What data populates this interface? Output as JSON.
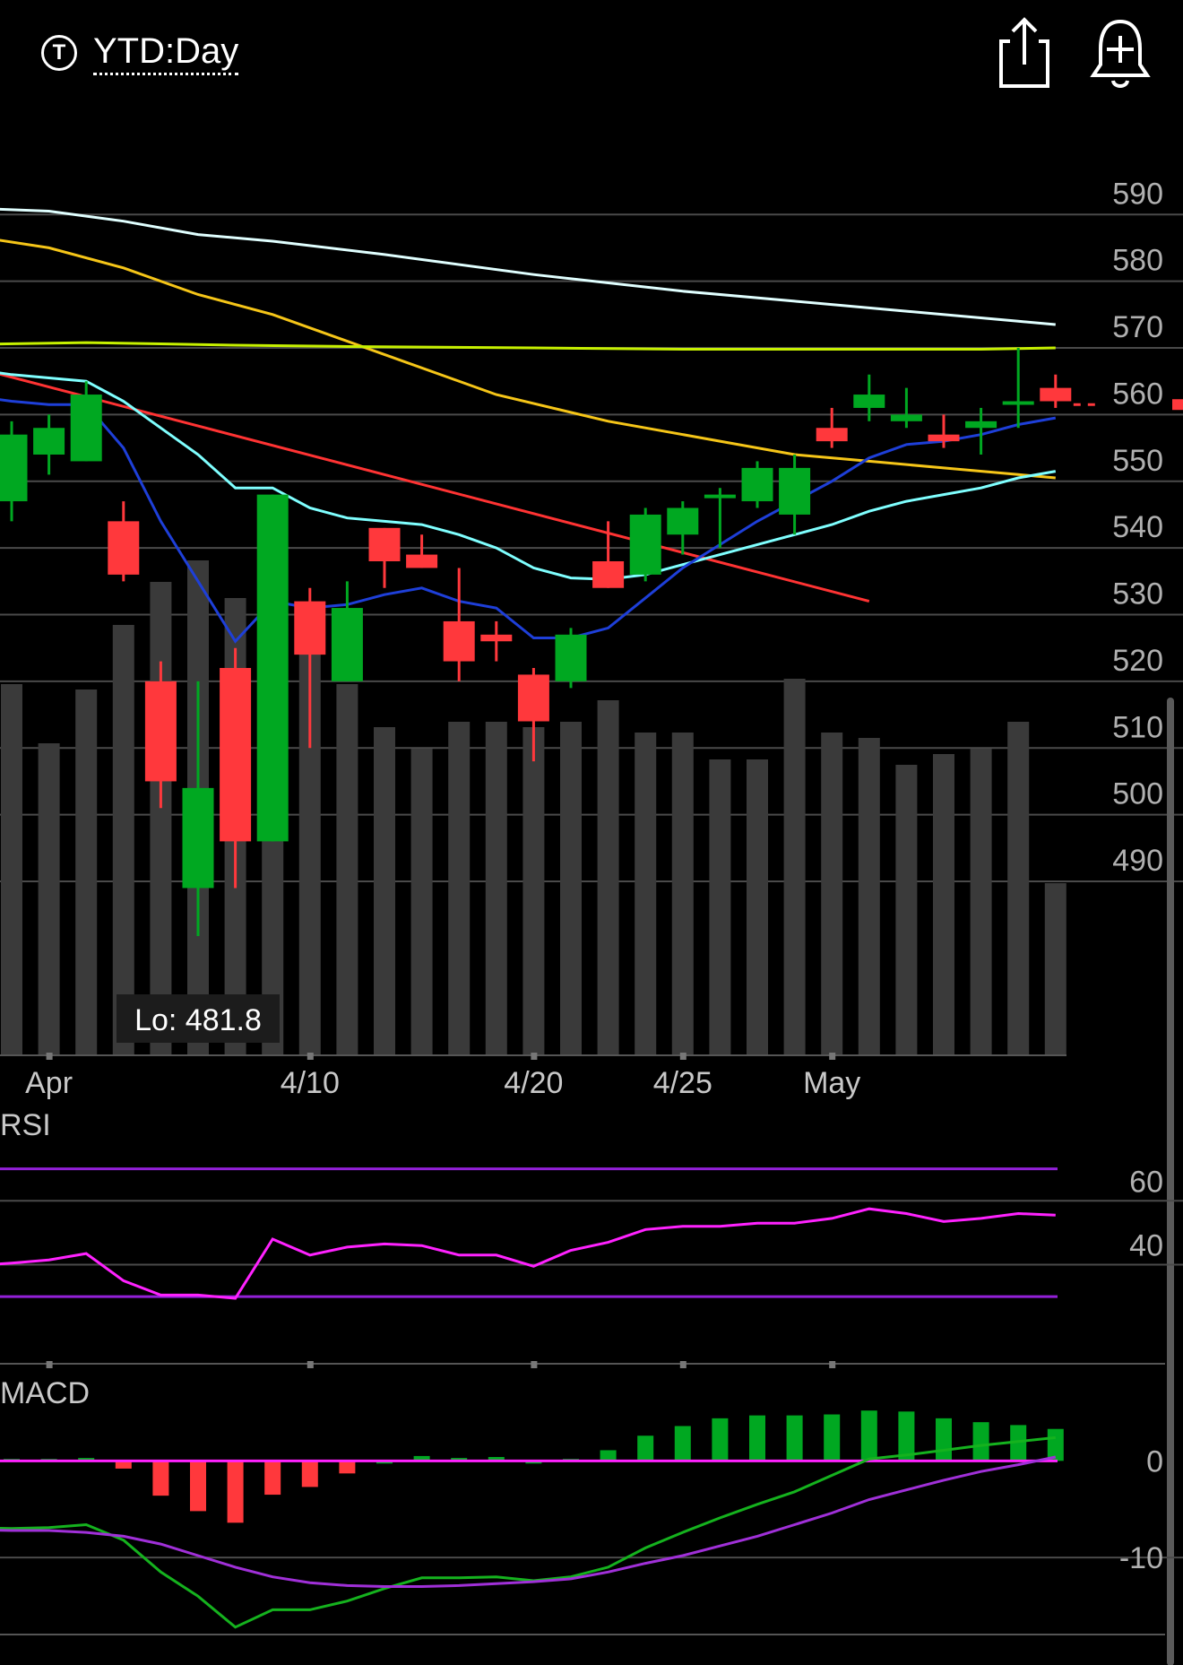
{
  "header": {
    "ticker_symbol": "T",
    "period_label": "YTD:Day",
    "share_icon": "share-icon",
    "alert_icon": "add-alert-bell-icon"
  },
  "chart_data": {
    "type": "candlestick",
    "x_tick_labels": [
      {
        "label": "Apr",
        "index": 1
      },
      {
        "label": "4/10",
        "index": 8
      },
      {
        "label": "4/20",
        "index": 14
      },
      {
        "label": "4/25",
        "index": 18
      },
      {
        "label": "May",
        "index": 22
      }
    ],
    "price_axis": {
      "ticks": [
        590,
        580,
        570,
        560,
        550,
        540,
        530,
        520,
        510,
        500,
        490
      ],
      "range": [
        474,
        602
      ]
    },
    "candles": [
      {
        "o": 547,
        "h": 559,
        "l": 544,
        "c": 557
      },
      {
        "o": 554,
        "h": 560,
        "l": 551,
        "c": 558
      },
      {
        "o": 553,
        "h": 565,
        "l": 553,
        "c": 563
      },
      {
        "o": 544,
        "h": 547,
        "l": 535,
        "c": 536
      },
      {
        "o": 520,
        "h": 523,
        "l": 501,
        "c": 505
      },
      {
        "o": 489,
        "h": 520,
        "l": 481.8,
        "c": 504
      },
      {
        "o": 522,
        "h": 525,
        "l": 489,
        "c": 496
      },
      {
        "o": 496,
        "h": 548,
        "l": 496,
        "c": 548
      },
      {
        "o": 532,
        "h": 534,
        "l": 510,
        "c": 524
      },
      {
        "o": 520,
        "h": 535,
        "l": 520,
        "c": 531
      },
      {
        "o": 543,
        "h": 543,
        "l": 534,
        "c": 538
      },
      {
        "o": 539,
        "h": 542,
        "l": 537,
        "c": 537
      },
      {
        "o": 529,
        "h": 537,
        "l": 520,
        "c": 523
      },
      {
        "o": 527,
        "h": 529,
        "l": 523,
        "c": 526
      },
      {
        "o": 521,
        "h": 522,
        "l": 508,
        "c": 514
      },
      {
        "o": 520,
        "h": 528,
        "l": 519,
        "c": 527
      },
      {
        "o": 538,
        "h": 544,
        "l": 534,
        "c": 534
      },
      {
        "o": 536,
        "h": 546,
        "l": 535,
        "c": 545
      },
      {
        "o": 542,
        "h": 547,
        "l": 539,
        "c": 546
      },
      {
        "o": 548,
        "h": 549,
        "l": 540,
        "c": 548
      },
      {
        "o": 547,
        "h": 553,
        "l": 546,
        "c": 552
      },
      {
        "o": 545,
        "h": 554,
        "l": 542,
        "c": 552
      },
      {
        "o": 558,
        "h": 561,
        "l": 555,
        "c": 556
      },
      {
        "o": 561,
        "h": 566,
        "l": 559,
        "c": 563
      },
      {
        "o": 559,
        "h": 564,
        "l": 558,
        "c": 560
      },
      {
        "o": 557,
        "h": 560,
        "l": 555,
        "c": 556
      },
      {
        "o": 558,
        "h": 561,
        "l": 554,
        "c": 559
      },
      {
        "o": 562,
        "h": 570,
        "l": 558,
        "c": 562
      },
      {
        "o": 564,
        "h": 566,
        "l": 561,
        "c": 562
      }
    ],
    "last_price": 561.5,
    "volume": [
      0.69,
      0.58,
      0.68,
      0.8,
      0.88,
      0.92,
      0.85,
      0.78,
      0.8,
      0.69,
      0.61,
      0.57,
      0.62,
      0.62,
      0.61,
      0.62,
      0.66,
      0.6,
      0.6,
      0.55,
      0.55,
      0.7,
      0.6,
      0.59,
      0.54,
      0.56,
      0.57,
      0.62,
      0.32
    ],
    "low_label": "Lo: 481.8",
    "moving_averages": [
      {
        "color": "#e0ffff",
        "x": [
          -1.3,
          1,
          3,
          5,
          7,
          10,
          14,
          18,
          21,
          24,
          27,
          28
        ],
        "y": [
          591,
          590.5,
          589,
          587,
          586,
          584,
          581,
          578.5,
          577,
          575.5,
          574,
          573.5
        ]
      },
      {
        "color": "#f5c518",
        "x": [
          -1.3,
          1,
          3,
          5,
          7,
          10,
          13,
          16,
          19,
          21,
          23,
          25,
          27,
          28
        ],
        "y": [
          587,
          585,
          582,
          578,
          575,
          569,
          563,
          559,
          556,
          554,
          553,
          552,
          551,
          550.5
        ]
      },
      {
        "color": "#c6f000",
        "x": [
          -1.3,
          2,
          4,
          6,
          9,
          14,
          18,
          22,
          26,
          28
        ],
        "y": [
          570.5,
          570.8,
          570.6,
          570.4,
          570.2,
          570,
          569.8,
          569.8,
          569.8,
          570
        ]
      },
      {
        "color": "#ff3333",
        "x": [
          -1.3,
          23
        ],
        "y": [
          567.5,
          532
        ]
      },
      {
        "color": "#7fffff",
        "x": [
          -1.3,
          0,
          1,
          2,
          3,
          4,
          5,
          6,
          7,
          8,
          9,
          10,
          11,
          12,
          13,
          14,
          15,
          16,
          17,
          18,
          19,
          20,
          21,
          22,
          23,
          24,
          25,
          26,
          27,
          28
        ],
        "y": [
          567,
          566,
          565.5,
          565,
          562,
          558,
          554,
          549,
          549,
          546,
          544.5,
          544,
          543.5,
          542,
          540,
          537,
          535.5,
          535.3,
          536,
          537.5,
          539,
          540.5,
          542,
          543.5,
          545.5,
          547,
          548,
          549,
          550.5,
          551.5
        ]
      },
      {
        "color": "#1e3fd8",
        "x": [
          -1.3,
          0,
          1,
          2,
          3,
          4,
          5,
          6,
          7,
          8,
          9,
          10,
          11,
          12,
          13,
          14,
          15,
          16,
          17,
          18,
          19,
          20,
          21,
          22,
          23,
          24,
          25,
          26,
          27,
          28
        ],
        "y": [
          563,
          562,
          561.5,
          561.5,
          555,
          544,
          535,
          526,
          532,
          531,
          531.5,
          533,
          534,
          532,
          531,
          526.5,
          526.5,
          528,
          532.5,
          537,
          540.5,
          544,
          547,
          550,
          553.5,
          555.5,
          556,
          557,
          558.5,
          559.5
        ]
      }
    ],
    "rsi": {
      "title": "RSI",
      "ticks": [
        60,
        40
      ],
      "range": [
        9,
        80
      ],
      "bands": [
        70,
        30
      ],
      "x": [
        -1.3,
        0,
        1,
        2,
        3,
        4,
        5,
        6,
        7,
        8,
        9,
        10,
        11,
        12,
        13,
        14,
        15,
        16,
        17,
        18,
        19,
        20,
        21,
        22,
        23,
        24,
        25,
        26,
        27,
        28
      ],
      "values": [
        39.5,
        40.5,
        41.5,
        43.5,
        35,
        30.5,
        30.5,
        29.5,
        48,
        43,
        45.5,
        46.5,
        46,
        43,
        43,
        39.5,
        44.5,
        47,
        51,
        52,
        52,
        53,
        53,
        54.5,
        57.5,
        56,
        53.5,
        54.5,
        56,
        55.5
      ]
    },
    "macd": {
      "title": "MACD",
      "ticks": [
        0,
        -10
      ],
      "range": [
        -20,
        5.5
      ],
      "x": [
        -1.3,
        0,
        1,
        2,
        3,
        4,
        5,
        6,
        7,
        8,
        9,
        10,
        11,
        12,
        13,
        14,
        15,
        16,
        17,
        18,
        19,
        20,
        21,
        22,
        23,
        24,
        25,
        26,
        27,
        28
      ],
      "macd_line": [
        -6.9,
        -7,
        -6.9,
        -6.6,
        -8.2,
        -11.5,
        -14,
        -17.2,
        -15.4,
        -15.4,
        -14.5,
        -13.2,
        -12.1,
        -12.1,
        -12,
        -12.4,
        -12,
        -11,
        -9,
        -7.4,
        -5.9,
        -4.5,
        -3.2,
        -1.5,
        0.2,
        0.6,
        1.1,
        1.6,
        2,
        2.4
      ],
      "signal_line": [
        -7.1,
        -7.2,
        -7.2,
        -7.4,
        -7.8,
        -8.6,
        -9.8,
        -11,
        -12,
        -12.6,
        -12.9,
        -13,
        -13,
        -12.9,
        -12.7,
        -12.5,
        -12.2,
        -11.5,
        -10.6,
        -9.8,
        -8.8,
        -7.8,
        -6.6,
        -5.4,
        -4,
        -3,
        -2,
        -1.1,
        -0.4,
        0.4
      ],
      "histogram": [
        0.2,
        0.2,
        0.3,
        -0.8,
        -3.6,
        -5.2,
        -6.4,
        -3.5,
        -2.7,
        -1.3,
        0,
        0.5,
        0.3,
        0.4,
        0,
        0.2,
        1.1,
        2.6,
        3.6,
        4.4,
        4.7,
        4.7,
        4.8,
        5.2,
        5.1,
        4.4,
        4,
        3.7,
        3.3
      ]
    }
  },
  "colors": {
    "up": "#00a821",
    "down": "#ff383c",
    "grid": "#4a4a4a",
    "axis_text": "#b0b0b0",
    "volume": "#3a3a3a",
    "rsi_line": "#ff22ff",
    "rsi_band": "#9320d8",
    "macd_line": "#15b21e",
    "signal_line": "#a030d8",
    "zero_line": "#ff22ff"
  }
}
